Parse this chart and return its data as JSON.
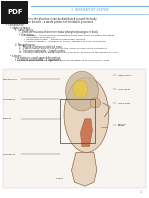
{
  "bg_color": "#ffffff",
  "header_color": "#5b9bd5",
  "header_text": "3  RESPIRATORY SYSTEM",
  "pdf_badge_color": "#1a1a1a",
  "pdf_badge_text": "PDF",
  "text_color": "#222222",
  "diagram_color": "#d4c5a9",
  "label_color": "#333333"
}
